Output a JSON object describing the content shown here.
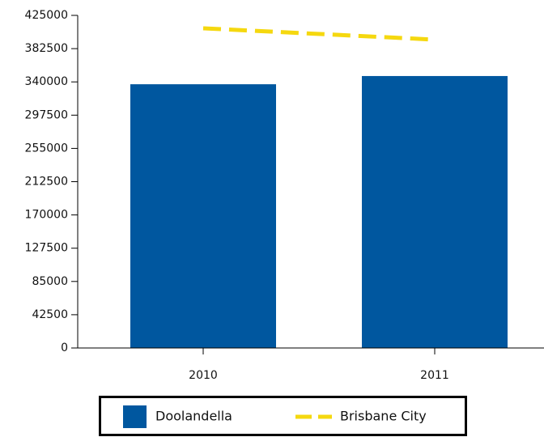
{
  "chart_data": {
    "type": "bar",
    "categories": [
      "2010",
      "2011"
    ],
    "series": [
      {
        "name": "Doolandella",
        "type": "bar",
        "color": "#00579f",
        "values": [
          337000,
          347500
        ]
      },
      {
        "name": "Brisbane City",
        "type": "line",
        "dashed": true,
        "color": "#f5d80f",
        "values": [
          408500,
          394000
        ]
      }
    ],
    "ylim": [
      0,
      425000
    ],
    "yticks": [
      0,
      42500,
      85000,
      127500,
      170000,
      212500,
      255000,
      297500,
      340000,
      382500,
      425000
    ],
    "grid": false,
    "legend": "bottom"
  }
}
